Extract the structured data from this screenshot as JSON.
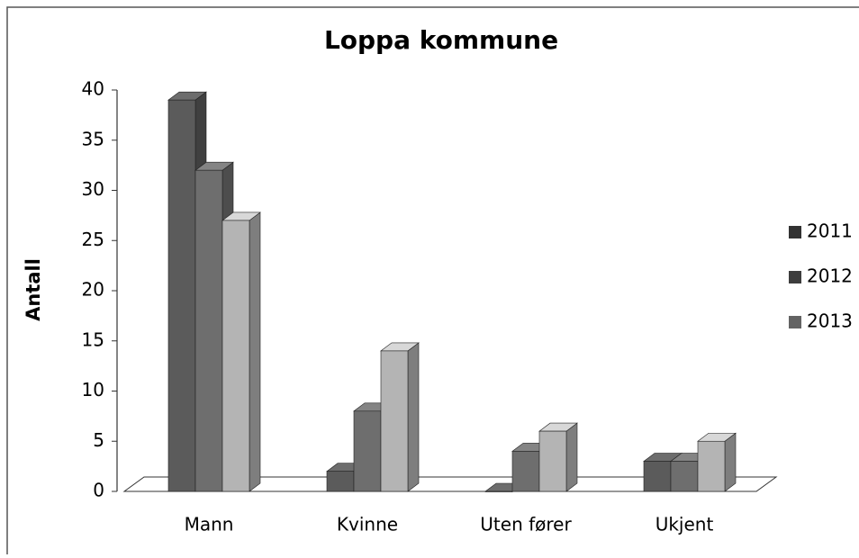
{
  "chart_data": {
    "type": "bar3d",
    "title": "Loppa kommune",
    "y_label": "Antall",
    "categories": [
      "Mann",
      "Kvinne",
      "Uten fører",
      "Ukjent"
    ],
    "series": [
      {
        "name": "2011",
        "color": "#5b5b5b",
        "values": [
          39,
          2,
          0,
          3
        ]
      },
      {
        "name": "2012",
        "color": "#6e6e6e",
        "values": [
          32,
          8,
          4,
          3
        ]
      },
      {
        "name": "2013",
        "color": "#b4b4b4",
        "values": [
          27,
          14,
          6,
          5
        ]
      }
    ],
    "ylim": [
      0,
      40
    ],
    "yticks": [
      0,
      5,
      10,
      15,
      20,
      25,
      30,
      35,
      40
    ],
    "legend": "right"
  }
}
